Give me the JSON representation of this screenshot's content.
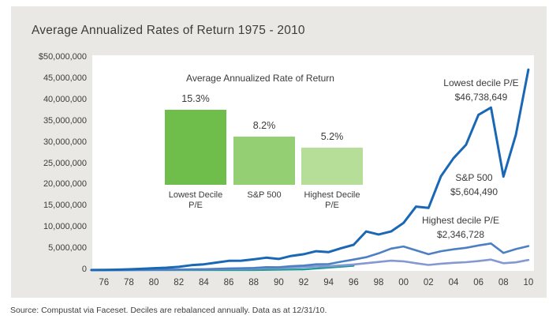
{
  "title": "Average Annualized Rates of Return 1975 - 2010",
  "source": "Source: Compustat via Faceset. Deciles are rebalanced annually. Data as at 12/31/10.",
  "colors": {
    "panel_bg": "#eae8e5",
    "plot_bg": "#ffffff",
    "lowest_line": "#1a68b5",
    "sp500_line": "#4d80c3",
    "highest_line": "#8499d1",
    "baseline": "#219b9b",
    "text": "#3c3b39",
    "bar_lowest": "#6fbe4c",
    "bar_sp500": "#95cf73",
    "bar_highest": "#b6de98"
  },
  "chart_data": {
    "type": "line",
    "title": "Average Annualized Rates of Return 1975 - 2010",
    "ylim_usd": [
      0,
      50000000
    ],
    "ytick_labels": [
      "$50,000,000",
      "45,000,000",
      "40,000,000",
      "35,000,000",
      "30,000,000",
      "25,000,000",
      "20,000,000",
      "15,000,000",
      "10,000,000",
      "5,000,000",
      "0"
    ],
    "xtick_labels": [
      "76",
      "78",
      "80",
      "82",
      "84",
      "86",
      "88",
      "90",
      "92",
      "94",
      "96",
      "98",
      "00",
      "02",
      "04",
      "06",
      "08",
      "10"
    ],
    "years": [
      1975,
      1976,
      1977,
      1978,
      1979,
      1980,
      1981,
      1982,
      1983,
      1984,
      1985,
      1986,
      1987,
      1988,
      1989,
      1990,
      1991,
      1992,
      1993,
      1994,
      1995,
      1996,
      1997,
      1998,
      1999,
      2000,
      2001,
      2002,
      2003,
      2004,
      2005,
      2006,
      2007,
      2008,
      2009,
      2010
    ],
    "values_unit": "USD millions",
    "series": [
      {
        "name": "Lowest decile P/E",
        "annotation_value": "$46,738,649",
        "color": "#1a68b5",
        "values_usd_millions": [
          0.01,
          0.05,
          0.1,
          0.18,
          0.3,
          0.45,
          0.55,
          0.75,
          1.15,
          1.35,
          1.75,
          2.15,
          2.2,
          2.5,
          2.9,
          2.6,
          3.3,
          3.7,
          4.4,
          4.2,
          5.1,
          5.9,
          9.0,
          8.3,
          9.0,
          11.0,
          14.8,
          14.5,
          21.9,
          26.1,
          29.2,
          36.2,
          37.9,
          21.8,
          31.6,
          46.74
        ]
      },
      {
        "name": "S&P 500",
        "annotation_value": "$5,604,490",
        "color": "#4d80c3",
        "values_usd_millions": [
          0.01,
          0.02,
          0.02,
          0.03,
          0.05,
          0.08,
          0.08,
          0.12,
          0.18,
          0.2,
          0.3,
          0.38,
          0.42,
          0.5,
          0.68,
          0.66,
          0.92,
          1.05,
          1.35,
          1.4,
          1.95,
          2.45,
          3.0,
          3.9,
          5.0,
          5.5,
          4.6,
          3.7,
          4.4,
          4.85,
          5.2,
          5.75,
          6.2,
          4.0,
          4.9,
          5.6
        ]
      },
      {
        "name": "Highest decile P/E",
        "annotation_value": "$2,346,728",
        "color": "#8499d1",
        "values_usd_millions": [
          0.01,
          0.02,
          0.02,
          0.03,
          0.04,
          0.06,
          0.07,
          0.1,
          0.14,
          0.16,
          0.22,
          0.28,
          0.3,
          0.35,
          0.45,
          0.44,
          0.6,
          0.7,
          0.85,
          0.9,
          1.1,
          1.3,
          1.6,
          1.9,
          2.2,
          2.05,
          1.6,
          1.2,
          1.5,
          1.7,
          1.85,
          2.1,
          2.45,
          1.6,
          1.8,
          2.35
        ]
      }
    ],
    "baseline_segment": {
      "color": "#219b9b",
      "points_year_musd": [
        [
          1975,
          0.0
        ],
        [
          1988,
          0.02
        ],
        [
          1992,
          0.15
        ],
        [
          1996,
          1.0
        ]
      ]
    },
    "inset": {
      "type": "bar",
      "title": "Average Annualized Rate of Return",
      "bars": [
        {
          "label_lines": [
            "Lowest Decile",
            "P/E"
          ],
          "value_pct": 15.3,
          "value_label": "15.3%",
          "color": "#6fbe4c"
        },
        {
          "label_lines": [
            "S&P 500"
          ],
          "value_pct": 8.2,
          "value_label": "8.2%",
          "color": "#95cf73"
        },
        {
          "label_lines": [
            "Highest Decile",
            "P/E"
          ],
          "value_pct": 5.2,
          "value_label": "5.2%",
          "color": "#b6de98"
        }
      ]
    }
  }
}
